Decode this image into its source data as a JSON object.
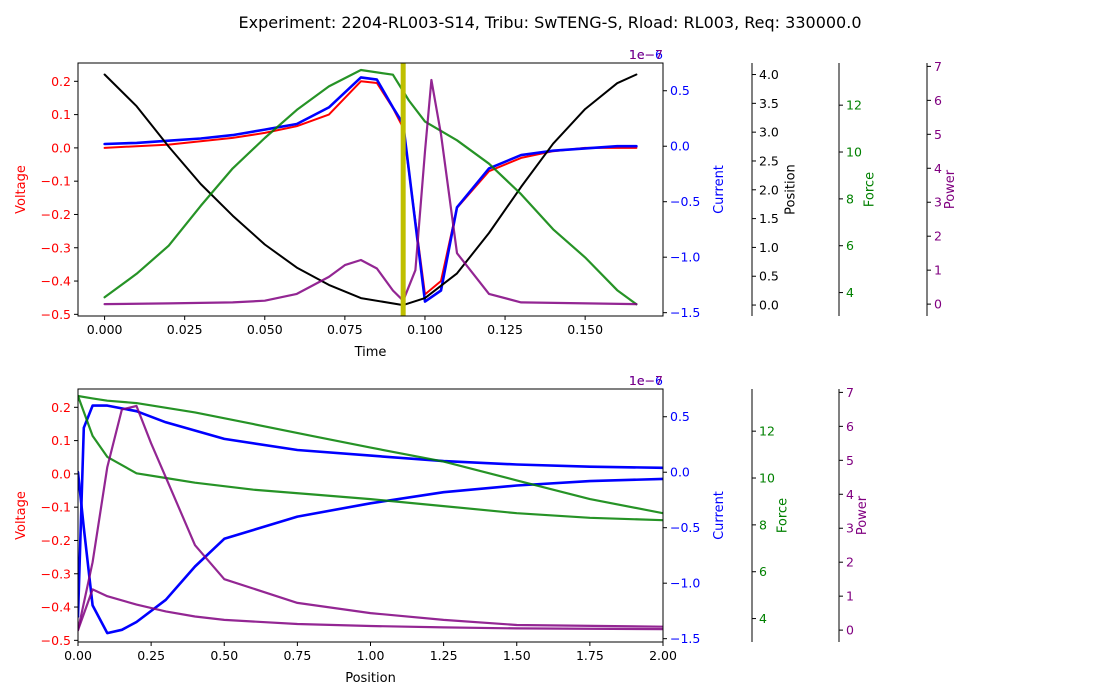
{
  "figure": {
    "title": "Experiment: 2204-RL003-S14, Tribu: SwTENG-S, Rload: RL003, Req: 330000.0"
  },
  "colors": {
    "voltage": "#ff0000",
    "current": "#0000ff",
    "position": "#000000",
    "force": "#008000",
    "power": "#800080",
    "marker": "#bfbf00"
  },
  "chart_data": [
    {
      "type": "line",
      "x_axis": {
        "label": "Time",
        "lim": [
          -0.0083,
          0.1743
        ],
        "ticks": [
          0.0,
          0.025,
          0.05,
          0.075,
          0.1,
          0.125,
          0.15
        ],
        "tick_labels": [
          "0.000",
          "0.025",
          "0.050",
          "0.075",
          "0.100",
          "0.125",
          "0.150"
        ]
      },
      "y_axes": [
        {
          "id": "voltage",
          "label": "Voltage",
          "lim": [
            -0.505,
            0.255
          ],
          "ticks": [
            -0.5,
            -0.4,
            -0.3,
            -0.2,
            -0.1,
            0.0,
            0.1,
            0.2
          ],
          "tick_labels": [
            "−0.5",
            "−0.4",
            "−0.3",
            "−0.2",
            "−0.1",
            "0.0",
            "0.1",
            "0.2"
          ]
        },
        {
          "id": "current",
          "label": "Current",
          "offset_text": "1e−6",
          "lim": [
            -1.53,
            0.75
          ],
          "ticks": [
            -1.5,
            -1.0,
            -0.5,
            0.0,
            0.5
          ],
          "tick_labels": [
            "−1.5",
            "−1.0",
            "−0.5",
            "0.0",
            "0.5"
          ]
        },
        {
          "id": "position",
          "label": "Position",
          "lim": [
            -0.19,
            4.2
          ],
          "ticks": [
            0.0,
            0.5,
            1.0,
            1.5,
            2.0,
            2.5,
            3.0,
            3.5,
            4.0
          ],
          "tick_labels": [
            "0.0",
            "0.5",
            "1.0",
            "1.5",
            "2.0",
            "2.5",
            "3.0",
            "3.5",
            "4.0"
          ]
        },
        {
          "id": "force",
          "label": "Force",
          "lim": [
            3.0,
            13.8
          ],
          "ticks": [
            4,
            6,
            8,
            10,
            12
          ],
          "tick_labels": [
            "4",
            "6",
            "8",
            "10",
            "12"
          ]
        },
        {
          "id": "power",
          "label": "Power",
          "offset_text": "1e−7",
          "lim": [
            -0.35,
            7.1
          ],
          "ticks": [
            0,
            1,
            2,
            3,
            4,
            5,
            6,
            7
          ],
          "tick_labels": [
            "0",
            "1",
            "2",
            "3",
            "4",
            "5",
            "6",
            "7"
          ]
        }
      ],
      "vline": {
        "x": 0.0932
      },
      "series": [
        {
          "axis": "voltage",
          "x": [
            0.0,
            0.01,
            0.02,
            0.03,
            0.04,
            0.05,
            0.06,
            0.07,
            0.08,
            0.085,
            0.09,
            0.0932,
            0.1,
            0.105,
            0.11,
            0.12,
            0.13,
            0.14,
            0.15,
            0.16,
            0.166
          ],
          "y": [
            0.0,
            0.005,
            0.01,
            0.02,
            0.03,
            0.045,
            0.065,
            0.1,
            0.2,
            0.195,
            0.12,
            0.06,
            -0.44,
            -0.4,
            -0.18,
            -0.07,
            -0.03,
            -0.01,
            0.0,
            0.0,
            0.0
          ]
        },
        {
          "axis": "current",
          "x": [
            0.0,
            0.01,
            0.02,
            0.03,
            0.04,
            0.05,
            0.06,
            0.07,
            0.08,
            0.085,
            0.09,
            0.0932,
            0.1,
            0.105,
            0.11,
            0.12,
            0.13,
            0.14,
            0.15,
            0.16,
            0.166
          ],
          "y": [
            0.02,
            0.03,
            0.05,
            0.07,
            0.1,
            0.15,
            0.2,
            0.35,
            0.62,
            0.6,
            0.35,
            0.2,
            -1.4,
            -1.3,
            -0.55,
            -0.2,
            -0.08,
            -0.04,
            -0.02,
            0.0,
            0.0
          ]
        },
        {
          "axis": "position",
          "x": [
            0.0,
            0.01,
            0.02,
            0.03,
            0.04,
            0.05,
            0.06,
            0.07,
            0.08,
            0.0932,
            0.1,
            0.11,
            0.12,
            0.13,
            0.14,
            0.15,
            0.16,
            0.166
          ],
          "y": [
            4.0,
            3.45,
            2.75,
            2.1,
            1.55,
            1.05,
            0.65,
            0.35,
            0.12,
            0.0,
            0.12,
            0.55,
            1.25,
            2.05,
            2.8,
            3.4,
            3.85,
            4.0
          ]
        },
        {
          "axis": "force",
          "x": [
            0.0,
            0.01,
            0.02,
            0.03,
            0.04,
            0.05,
            0.06,
            0.07,
            0.08,
            0.09,
            0.095,
            0.1,
            0.11,
            0.12,
            0.13,
            0.14,
            0.15,
            0.16,
            0.166
          ],
          "y": [
            3.8,
            4.8,
            6.0,
            7.7,
            9.3,
            10.6,
            11.8,
            12.8,
            13.5,
            13.3,
            12.2,
            11.3,
            10.5,
            9.5,
            8.2,
            6.7,
            5.5,
            4.1,
            3.5
          ]
        },
        {
          "axis": "power",
          "x": [
            0.0,
            0.02,
            0.04,
            0.05,
            0.06,
            0.07,
            0.075,
            0.08,
            0.085,
            0.09,
            0.0932,
            0.097,
            0.1,
            0.102,
            0.105,
            0.11,
            0.12,
            0.13,
            0.166
          ],
          "y": [
            0.0,
            0.02,
            0.05,
            0.1,
            0.3,
            0.8,
            1.15,
            1.3,
            1.05,
            0.4,
            0.1,
            1.0,
            4.5,
            6.6,
            5.0,
            1.5,
            0.3,
            0.05,
            0.0
          ]
        }
      ]
    },
    {
      "type": "line",
      "x_axis": {
        "label": "Position",
        "lim": [
          0.0,
          2.0
        ],
        "ticks": [
          0.0,
          0.25,
          0.5,
          0.75,
          1.0,
          1.25,
          1.5,
          1.75,
          2.0
        ],
        "tick_labels": [
          "0.00",
          "0.25",
          "0.50",
          "0.75",
          "1.00",
          "1.25",
          "1.50",
          "1.75",
          "2.00"
        ]
      },
      "y_axes": [
        {
          "id": "voltage",
          "label": "Voltage",
          "lim": [
            -0.505,
            0.255
          ],
          "ticks": [
            -0.5,
            -0.4,
            -0.3,
            -0.2,
            -0.1,
            0.0,
            0.1,
            0.2
          ],
          "tick_labels": [
            "−0.5",
            "−0.4",
            "−0.3",
            "−0.2",
            "−0.1",
            "0.0",
            "0.1",
            "0.2"
          ]
        },
        {
          "id": "current",
          "label": "Current",
          "offset_text": "1e−6",
          "lim": [
            -1.53,
            0.75
          ],
          "ticks": [
            -1.5,
            -1.0,
            -0.5,
            0.0,
            0.5
          ],
          "tick_labels": [
            "−1.5",
            "−1.0",
            "−0.5",
            "0.0",
            "0.5"
          ]
        },
        {
          "id": "force",
          "label": "Force",
          "lim": [
            3.0,
            13.8
          ],
          "ticks": [
            4,
            6,
            8,
            10,
            12
          ],
          "tick_labels": [
            "4",
            "6",
            "8",
            "10",
            "12"
          ]
        },
        {
          "id": "power",
          "label": "Power",
          "offset_text": "1e−7",
          "lim": [
            -0.35,
            7.1
          ],
          "ticks": [
            0,
            1,
            2,
            3,
            4,
            5,
            6,
            7
          ],
          "tick_labels": [
            "0",
            "1",
            "2",
            "3",
            "4",
            "5",
            "6",
            "7"
          ]
        }
      ],
      "series": [
        {
          "axis": "current",
          "x": [
            0.0,
            0.02,
            0.05,
            0.1,
            0.2,
            0.3,
            0.5,
            0.75,
            1.0,
            1.25,
            1.5,
            1.75,
            2.0
          ],
          "y": [
            -1.3,
            0.4,
            0.6,
            0.6,
            0.55,
            0.45,
            0.3,
            0.2,
            0.15,
            0.1,
            0.07,
            0.05,
            0.04
          ]
        },
        {
          "axis": "current",
          "x": [
            0.0,
            0.02,
            0.05,
            0.1,
            0.15,
            0.2,
            0.3,
            0.4,
            0.5,
            0.75,
            1.0,
            1.25,
            1.5,
            1.75,
            2.0
          ],
          "y": [
            0.0,
            -0.5,
            -1.2,
            -1.45,
            -1.42,
            -1.35,
            -1.15,
            -0.85,
            -0.6,
            -0.4,
            -0.28,
            -0.18,
            -0.12,
            -0.08,
            -0.06
          ]
        },
        {
          "axis": "force",
          "x": [
            0.0,
            0.05,
            0.1,
            0.2,
            0.4,
            0.6,
            0.8,
            1.0,
            1.25,
            1.5,
            1.75,
            2.0
          ],
          "y": [
            13.5,
            13.4,
            13.3,
            13.2,
            12.8,
            12.3,
            11.8,
            11.3,
            10.7,
            9.9,
            9.1,
            8.5
          ]
        },
        {
          "axis": "force",
          "x": [
            0.0,
            0.05,
            0.1,
            0.2,
            0.3,
            0.4,
            0.6,
            0.8,
            1.0,
            1.25,
            1.5,
            1.75,
            2.0
          ],
          "y": [
            13.5,
            11.8,
            10.9,
            10.2,
            10.0,
            9.8,
            9.5,
            9.3,
            9.1,
            8.8,
            8.5,
            8.3,
            8.2
          ]
        },
        {
          "axis": "power",
          "x": [
            0.0,
            0.05,
            0.1,
            0.15,
            0.2,
            0.25,
            0.3,
            0.4,
            0.5,
            0.75,
            1.0,
            1.25,
            1.5,
            2.0
          ],
          "y": [
            0.0,
            2.0,
            4.8,
            6.5,
            6.6,
            5.5,
            4.5,
            2.5,
            1.5,
            0.8,
            0.5,
            0.3,
            0.15,
            0.1
          ]
        },
        {
          "axis": "power",
          "x": [
            0.0,
            0.05,
            0.1,
            0.2,
            0.3,
            0.4,
            0.5,
            0.75,
            1.0,
            1.25,
            1.5,
            2.0
          ],
          "y": [
            0.0,
            1.2,
            1.0,
            0.75,
            0.55,
            0.4,
            0.3,
            0.18,
            0.12,
            0.08,
            0.05,
            0.03
          ]
        }
      ]
    }
  ]
}
